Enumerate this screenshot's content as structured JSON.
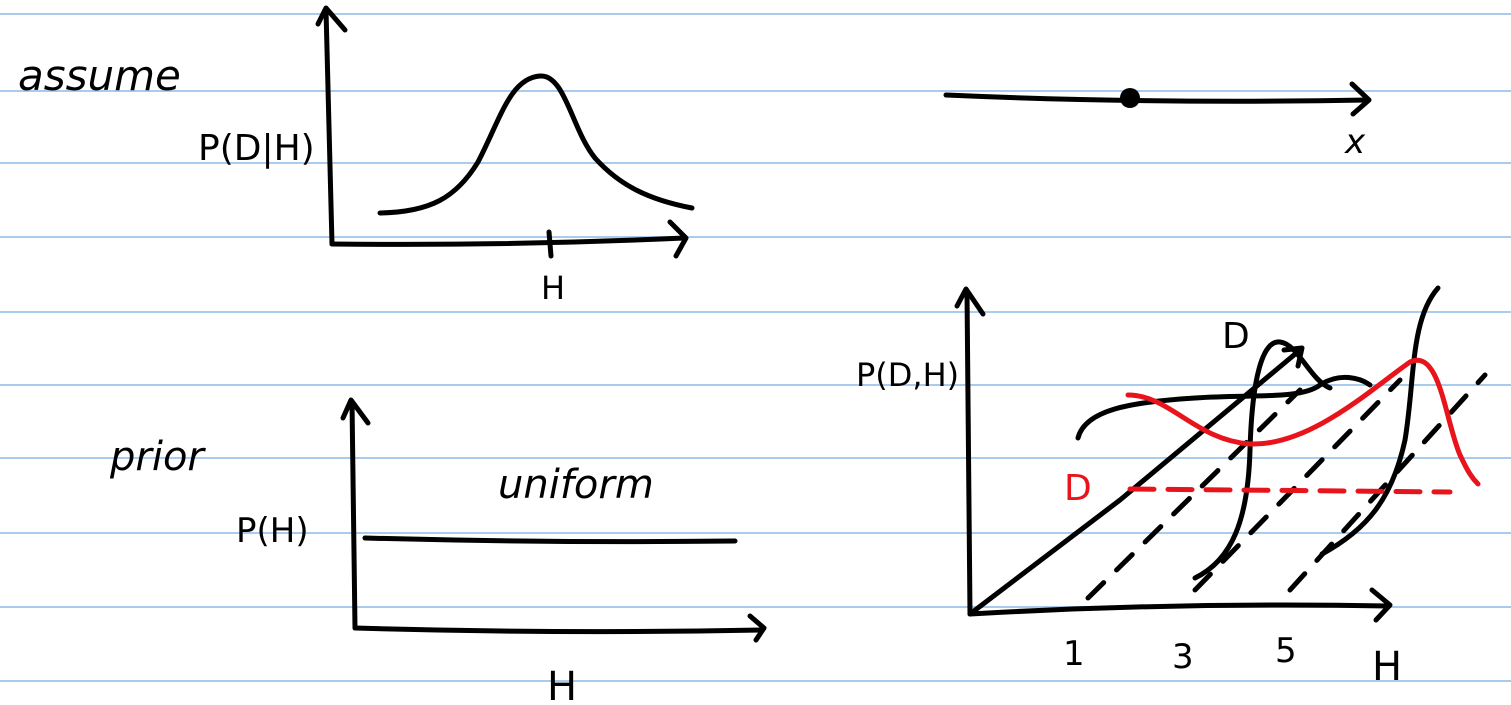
{
  "notes": {
    "top_left_label": "assume",
    "likelihood_plot": {
      "ylabel": "P(D|H)",
      "xlabel": "H"
    },
    "number_line": {
      "axis_label": "x"
    },
    "prior_label": "prior",
    "prior_plot": {
      "ylabel": "P(H)",
      "xlabel": "H",
      "annotation": "uniform"
    },
    "joint_plot": {
      "ylabel": "P(D,H)",
      "xlabel": "H",
      "d_label_black": "D",
      "d_label_red": "D",
      "ticks": [
        "1",
        "3",
        "5"
      ]
    }
  },
  "colors": {
    "rule": "#a9cbee",
    "ink": "#000000",
    "highlight": "#e8141c"
  }
}
